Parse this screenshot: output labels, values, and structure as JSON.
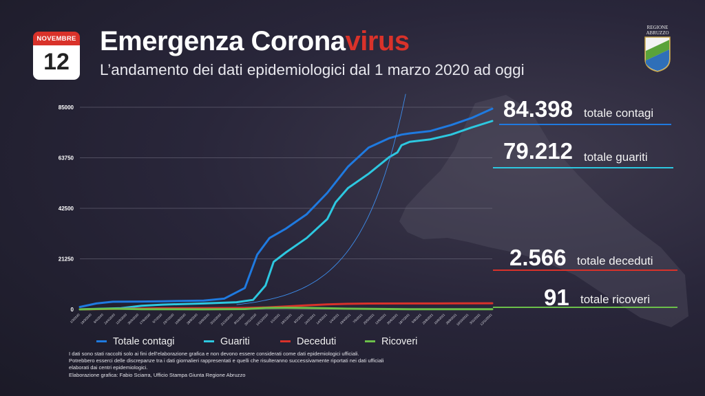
{
  "calendar": {
    "month": "NOVEMBRE",
    "day": "12"
  },
  "header": {
    "title_main": "Emergenza Corona",
    "title_accent": "virus",
    "subtitle": "L’andamento dei dati epidemiologici dal 1 marzo 2020 ad oggi"
  },
  "logo": {
    "line1": "REGIONE",
    "line2": "ABRUZZO"
  },
  "stats": {
    "contagi": {
      "value": "84.398",
      "label": "totale contagi"
    },
    "guariti": {
      "value": "79.212",
      "label": "totale guariti"
    },
    "deceduti": {
      "value": "2.566",
      "label": "totale deceduti"
    },
    "ricoveri": {
      "value": "91",
      "label": "totale ricoveri"
    }
  },
  "colors": {
    "contagi": "#1f7ae0",
    "guariti": "#2dc8e0",
    "deceduti": "#d9322a",
    "ricoveri": "#6cc04a",
    "accent": "#d9322a"
  },
  "footnote": [
    "I dati sono stati raccolti solo ai fini dell’elaborazione grafica e non devono essere considerati come dati epidemiologici ufficiali.",
    "Potrebbero esserci delle discrepanze tra i dati giornalieri rappresentati e quelli che risulteranno successivamente riportati nei dati ufficiali",
    "elaborati dai centri epidemiologici.",
    "Elaborazione grafica: Fabio Sciarra, Ufficio Stampa Giunta Regione Abruzzo"
  ],
  "chart_data": {
    "type": "line",
    "title": "",
    "xlabel": "",
    "ylabel": "",
    "ylim": [
      0,
      85000
    ],
    "yticks": [
      "0",
      "21250",
      "42500",
      "63750",
      "85000"
    ],
    "grid": true,
    "legend_position": "bottom",
    "x_tick_labels": [
      "1/3/2020",
      "19/3/2020",
      "6/4/2020",
      "24/4/2020",
      "12/5/2020",
      "30/5/2020",
      "17/6/2020",
      "5/7/2020",
      "23/7/2020",
      "10/8/2020",
      "28/8/2020",
      "15/9/2020",
      "3/10/2020",
      "21/10/2020",
      "8/11/2020",
      "26/11/2020",
      "14/12/2020",
      "1/1/2021",
      "19/1/2021",
      "6/2/2021",
      "24/2/2021",
      "14/3/2021",
      "1/4/2021",
      "19/4/2021",
      "7/5/2021",
      "25/5/2021",
      "12/6/2021",
      "30/6/2021",
      "18/7/2021",
      "5/8/2021",
      "23/8/2021",
      "10/9/2021",
      "28/9/2021",
      "16/10/2021",
      "3/11/2021",
      "12/11/2021"
    ],
    "series": [
      {
        "name": "Totale contagi",
        "color": "#1f7ae0",
        "points": [
          [
            0,
            1000
          ],
          [
            0.04,
            2500
          ],
          [
            0.08,
            3200
          ],
          [
            0.15,
            3300
          ],
          [
            0.2,
            3400
          ],
          [
            0.3,
            3700
          ],
          [
            0.35,
            4500
          ],
          [
            0.4,
            9000
          ],
          [
            0.43,
            23000
          ],
          [
            0.46,
            30000
          ],
          [
            0.5,
            34000
          ],
          [
            0.55,
            40000
          ],
          [
            0.6,
            49000
          ],
          [
            0.65,
            60000
          ],
          [
            0.7,
            68000
          ],
          [
            0.75,
            72000
          ],
          [
            0.78,
            73500
          ],
          [
            0.8,
            74000
          ],
          [
            0.85,
            75000
          ],
          [
            0.9,
            77500
          ],
          [
            0.95,
            80500
          ],
          [
            1.0,
            84398
          ]
        ]
      },
      {
        "name": "Guariti",
        "color": "#2dc8e0",
        "points": [
          [
            0,
            0
          ],
          [
            0.1,
            500
          ],
          [
            0.15,
            1500
          ],
          [
            0.2,
            2000
          ],
          [
            0.3,
            2500
          ],
          [
            0.38,
            3000
          ],
          [
            0.42,
            4000
          ],
          [
            0.45,
            10000
          ],
          [
            0.47,
            20000
          ],
          [
            0.5,
            24000
          ],
          [
            0.55,
            30000
          ],
          [
            0.6,
            38000
          ],
          [
            0.62,
            45000
          ],
          [
            0.65,
            51000
          ],
          [
            0.7,
            57000
          ],
          [
            0.75,
            64000
          ],
          [
            0.77,
            66000
          ],
          [
            0.78,
            69000
          ],
          [
            0.8,
            70500
          ],
          [
            0.85,
            71500
          ],
          [
            0.9,
            73500
          ],
          [
            0.95,
            76500
          ],
          [
            1.0,
            79212
          ]
        ]
      },
      {
        "name": "Deceduti",
        "color": "#d9322a",
        "points": [
          [
            0,
            0
          ],
          [
            0.1,
            250
          ],
          [
            0.2,
            450
          ],
          [
            0.3,
            480
          ],
          [
            0.4,
            600
          ],
          [
            0.45,
            800
          ],
          [
            0.5,
            1200
          ],
          [
            0.55,
            1700
          ],
          [
            0.6,
            2100
          ],
          [
            0.65,
            2350
          ],
          [
            0.7,
            2450
          ],
          [
            0.8,
            2480
          ],
          [
            0.9,
            2520
          ],
          [
            1.0,
            2566
          ]
        ]
      },
      {
        "name": "Ricoveri",
        "color": "#6cc04a",
        "points": [
          [
            0,
            0
          ],
          [
            0.08,
            300
          ],
          [
            0.15,
            100
          ],
          [
            0.3,
            20
          ],
          [
            0.4,
            150
          ],
          [
            0.45,
            600
          ],
          [
            0.5,
            700
          ],
          [
            0.55,
            600
          ],
          [
            0.6,
            450
          ],
          [
            0.65,
            300
          ],
          [
            0.7,
            200
          ],
          [
            0.8,
            80
          ],
          [
            0.9,
            60
          ],
          [
            1.0,
            91
          ]
        ]
      }
    ]
  }
}
